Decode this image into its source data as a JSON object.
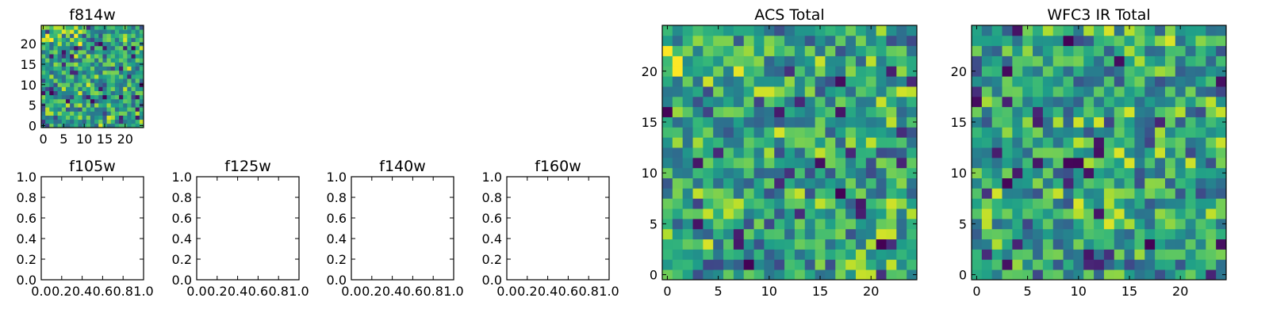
{
  "chart_data": [
    {
      "name": "f814w",
      "type": "heatmap",
      "title": "f814w",
      "colormap": "viridis",
      "grid_size": 25,
      "seed": 814,
      "bias": "top-left-bright",
      "xlim": [
        -0.5,
        24.5
      ],
      "ylim": [
        -0.5,
        24.5
      ],
      "xticks": [
        0,
        5,
        10,
        15,
        20
      ],
      "yticks": [
        0,
        5,
        10,
        15,
        20
      ],
      "xtick_labels": [
        "0",
        "5",
        "10",
        "15",
        "20"
      ],
      "ytick_labels": [
        "0",
        "5",
        "10",
        "15",
        "20"
      ]
    },
    {
      "name": "f105w",
      "type": "heatmap",
      "title": "f105w",
      "empty": true,
      "xlim": [
        0,
        1
      ],
      "ylim": [
        0,
        1
      ],
      "xticks": [
        0,
        0.2,
        0.4,
        0.6,
        0.8,
        1.0
      ],
      "yticks": [
        0,
        0.2,
        0.4,
        0.6,
        0.8,
        1.0
      ],
      "xtick_labels": [
        "0.0",
        "0.2",
        "0.4",
        "0.6",
        "0.8",
        "1.0"
      ],
      "ytick_labels": [
        "0.0",
        "0.2",
        "0.4",
        "0.6",
        "0.8",
        "1.0"
      ]
    },
    {
      "name": "f125w",
      "type": "heatmap",
      "title": "f125w",
      "empty": true,
      "xlim": [
        0,
        1
      ],
      "ylim": [
        0,
        1
      ],
      "xticks": [
        0,
        0.2,
        0.4,
        0.6,
        0.8,
        1.0
      ],
      "yticks": [
        0,
        0.2,
        0.4,
        0.6,
        0.8,
        1.0
      ],
      "xtick_labels": [
        "0.0",
        "0.2",
        "0.4",
        "0.6",
        "0.8",
        "1.0"
      ],
      "ytick_labels": [
        "0.0",
        "0.2",
        "0.4",
        "0.6",
        "0.8",
        "1.0"
      ]
    },
    {
      "name": "f140w",
      "type": "heatmap",
      "title": "f140w",
      "empty": true,
      "xlim": [
        0,
        1
      ],
      "ylim": [
        0,
        1
      ],
      "xticks": [
        0,
        0.2,
        0.4,
        0.6,
        0.8,
        1.0
      ],
      "yticks": [
        0,
        0.2,
        0.4,
        0.6,
        0.8,
        1.0
      ],
      "xtick_labels": [
        "0.0",
        "0.2",
        "0.4",
        "0.6",
        "0.8",
        "1.0"
      ],
      "ytick_labels": [
        "0.0",
        "0.2",
        "0.4",
        "0.6",
        "0.8",
        "1.0"
      ]
    },
    {
      "name": "f160w",
      "type": "heatmap",
      "title": "f160w",
      "empty": true,
      "xlim": [
        0,
        1
      ],
      "ylim": [
        0,
        1
      ],
      "xticks": [
        0,
        0.2,
        0.4,
        0.6,
        0.8,
        1.0
      ],
      "yticks": [
        0,
        0.2,
        0.4,
        0.6,
        0.8,
        1.0
      ],
      "xtick_labels": [
        "0.0",
        "0.2",
        "0.4",
        "0.6",
        "0.8",
        "1.0"
      ],
      "ytick_labels": [
        "0.0",
        "0.2",
        "0.4",
        "0.6",
        "0.8",
        "1.0"
      ]
    },
    {
      "name": "acs-total",
      "type": "heatmap",
      "title": "ACS Total",
      "colormap": "viridis",
      "grid_size": 25,
      "seed": 2718,
      "bias": "top-left-bright",
      "xlim": [
        -0.5,
        24.5
      ],
      "ylim": [
        -0.5,
        24.5
      ],
      "xticks": [
        0,
        5,
        10,
        15,
        20
      ],
      "yticks": [
        0,
        5,
        10,
        15,
        20
      ],
      "xtick_labels": [
        "0",
        "5",
        "10",
        "15",
        "20"
      ],
      "ytick_labels": [
        "0",
        "5",
        "10",
        "15",
        "20"
      ]
    },
    {
      "name": "wfc3-ir-total",
      "type": "heatmap",
      "title": "WFC3 IR Total",
      "colormap": "viridis",
      "grid_size": 25,
      "seed": 3141,
      "bias": "none",
      "xlim": [
        -0.5,
        24.5
      ],
      "ylim": [
        -0.5,
        24.5
      ],
      "xticks": [
        0,
        5,
        10,
        15,
        20
      ],
      "yticks": [
        0,
        5,
        10,
        15,
        20
      ],
      "xtick_labels": [
        "0",
        "5",
        "10",
        "15",
        "20"
      ],
      "ytick_labels": [
        "0",
        "5",
        "10",
        "15",
        "20"
      ]
    }
  ]
}
